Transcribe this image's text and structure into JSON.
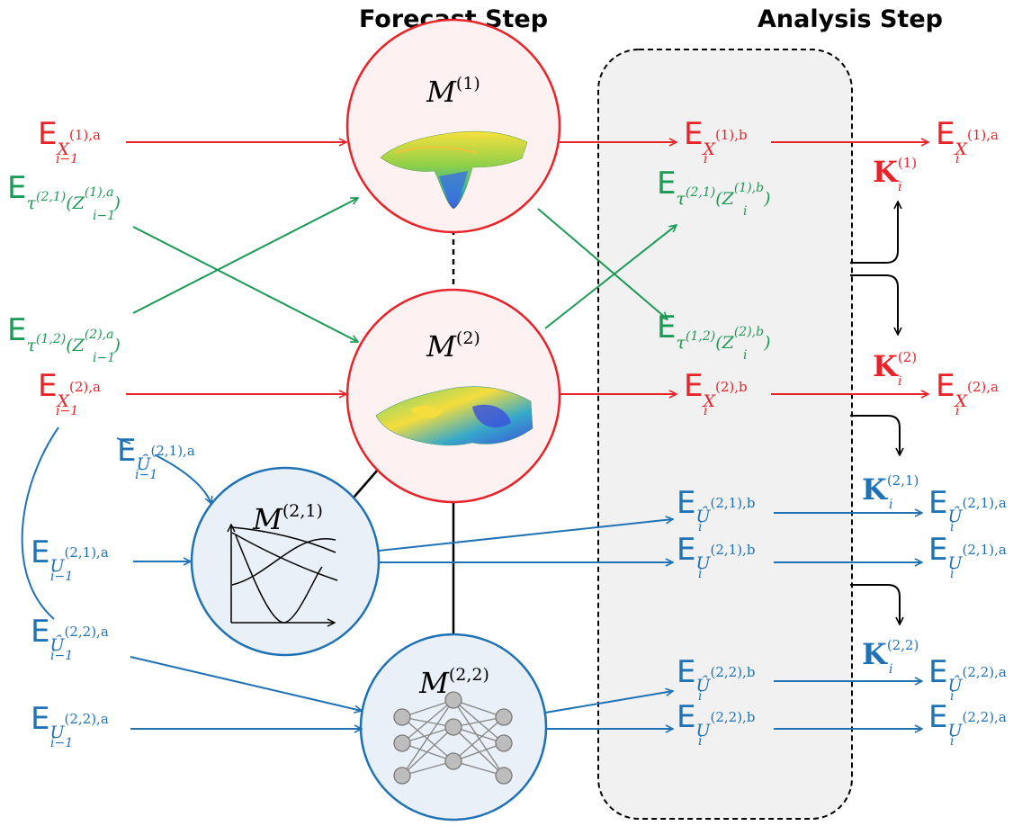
{
  "headers": {
    "forecast": "Forecast Step",
    "analysis": "Analysis Step"
  },
  "colors": {
    "red": "#e8242b",
    "green": "#1a9a55",
    "blue": "#1f72b4",
    "panel_fill": "#f1f1f1",
    "red_fill": "#fdf1f1",
    "blue_fill": "#eaf0f8"
  },
  "models": {
    "m1": {
      "letter": "M",
      "sup": "(1)",
      "content": "surface-plot-icon"
    },
    "m2": {
      "letter": "M",
      "sup": "(2)",
      "content": "surface-plot-icon"
    },
    "m21": {
      "letter": "M",
      "sup": "(2,1)",
      "content": "curve-plot-icon"
    },
    "m22": {
      "letter": "M",
      "sup": "(2,2)",
      "content": "neural-network-icon"
    }
  },
  "left_inputs": {
    "x1": {
      "E": "E",
      "var": "X",
      "sup": "(1),a",
      "sub": "i−1"
    },
    "tau21": {
      "E": "E",
      "pre": "τ",
      "presup": "(2,1)",
      "var": "Z",
      "sup": "(1),a",
      "sub": "i−1"
    },
    "tau12": {
      "E": "E",
      "pre": "τ",
      "presup": "(1,2)",
      "var": "Z",
      "sup": "(2),a",
      "sub": "i−1"
    },
    "x2": {
      "E": "E",
      "var": "X",
      "sup": "(2),a",
      "sub": "i−1"
    },
    "uhat21": {
      "E": "E",
      "var": "Û",
      "sup": "(2,1),a",
      "sub": "i−1"
    },
    "u21": {
      "E": "E",
      "var": "U",
      "sup": "(2,1),a",
      "sub": "i−1"
    },
    "uhat22": {
      "E": "E",
      "var": "Û",
      "sup": "(2,2),a",
      "sub": "i−1"
    },
    "u22": {
      "E": "E",
      "var": "U",
      "sup": "(2,2),a",
      "sub": "i−1"
    }
  },
  "background_states": {
    "x1": {
      "E": "E",
      "var": "X",
      "sup": "(1),b",
      "sub": "i"
    },
    "tau21": {
      "E": "E",
      "pre": "τ",
      "presup": "(2,1)",
      "var": "Z",
      "sup": "(1),b",
      "sub": "i"
    },
    "tau12": {
      "E": "E",
      "pre": "τ",
      "presup": "(1,2)",
      "var": "Z",
      "sup": "(2),b",
      "sub": "i"
    },
    "x2": {
      "E": "E",
      "var": "X",
      "sup": "(2),b",
      "sub": "i"
    },
    "uhat21": {
      "E": "E",
      "var": "Û",
      "sup": "(2,1),b",
      "sub": "i"
    },
    "u21": {
      "E": "E",
      "var": "U",
      "sup": "(2,1),b",
      "sub": "i"
    },
    "uhat22": {
      "E": "E",
      "var": "Û",
      "sup": "(2,2),b",
      "sub": "i"
    },
    "u22": {
      "E": "E",
      "var": "U",
      "sup": "(2,2),b",
      "sub": "i"
    }
  },
  "analysis_states": {
    "x1": {
      "E": "E",
      "var": "X",
      "sup": "(1),a",
      "sub": "i"
    },
    "x2": {
      "E": "E",
      "var": "X",
      "sup": "(2),a",
      "sub": "i"
    },
    "uhat21": {
      "E": "E",
      "var": "Û",
      "sup": "(2,1),a",
      "sub": "i"
    },
    "u21": {
      "E": "E",
      "var": "U",
      "sup": "(2,1),a",
      "sub": "i"
    },
    "uhat22": {
      "E": "E",
      "var": "Û",
      "sup": "(2,2),a",
      "sub": "i"
    },
    "u22": {
      "E": "E",
      "var": "U",
      "sup": "(2,2),a",
      "sub": "i"
    }
  },
  "gains": {
    "k1": {
      "K": "K",
      "sup": "(1)",
      "sub": "i"
    },
    "k2": {
      "K": "K",
      "sup": "(2)",
      "sub": "i"
    },
    "k21": {
      "K": "K",
      "sup": "(2,1)",
      "sub": "i"
    },
    "k22": {
      "K": "K",
      "sup": "(2,2)",
      "sub": "i"
    }
  }
}
